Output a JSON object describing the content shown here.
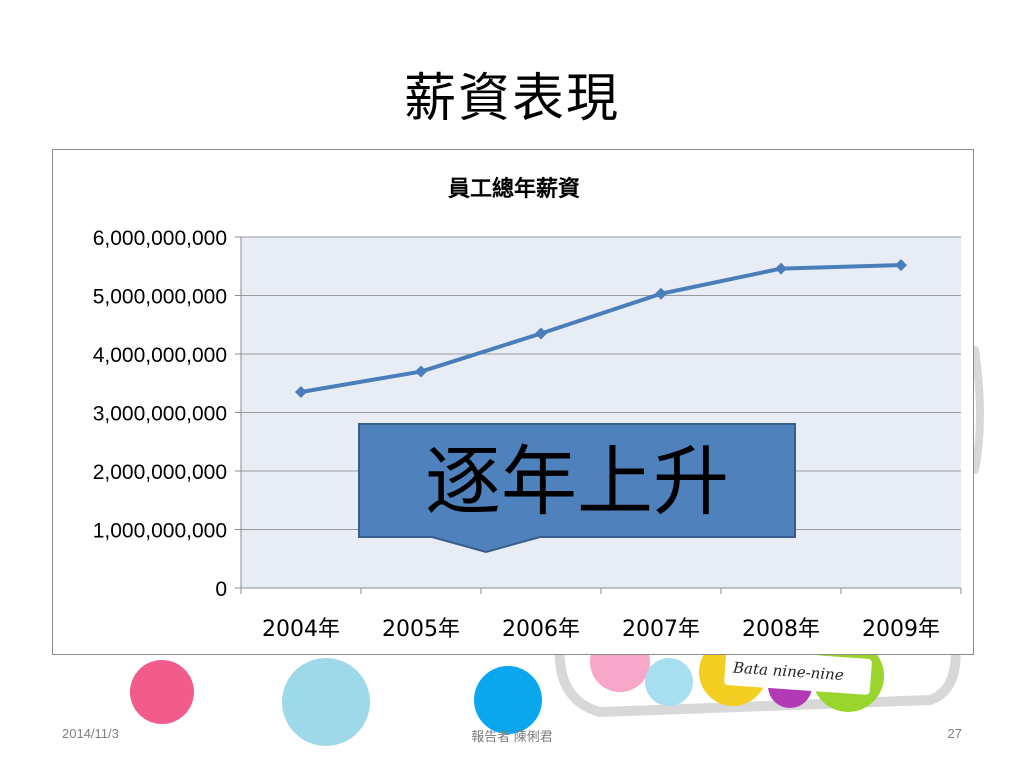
{
  "slide": {
    "title": "薪資表現",
    "footer_date": "2014/11/3",
    "footer_center": "報告者 陳俐君",
    "page_number": "27"
  },
  "decoration": {
    "dot_colors": [
      "#f25c8a",
      "#9ed9ea",
      "#0aa7ee"
    ],
    "jar_dot_colors": [
      "#f7a8c8",
      "#a8dff0",
      "#f2cf20",
      "#b23ab5",
      "#9ad52d"
    ],
    "label_text": "Bata  nine-nine"
  },
  "callout": {
    "text": "逐年上升",
    "fill": "#4f81bd",
    "border": "#385d8a"
  },
  "chart_data": {
    "type": "line",
    "title": "員工總年薪資",
    "categories": [
      "2004年",
      "2005年",
      "2006年",
      "2007年",
      "2008年",
      "2009年"
    ],
    "series": [
      {
        "values": [
          3350000000,
          3700000000,
          4350000000,
          5030000000,
          5460000000,
          5520000000
        ],
        "color": "#4a7ebb"
      }
    ],
    "ylim": [
      0,
      6000000000
    ],
    "yticks": [
      "0",
      "1,000,000,000",
      "2,000,000,000",
      "3,000,000,000",
      "4,000,000,000",
      "5,000,000,000",
      "6,000,000,000"
    ],
    "grid": true,
    "plot_background": "#e8edf5"
  }
}
